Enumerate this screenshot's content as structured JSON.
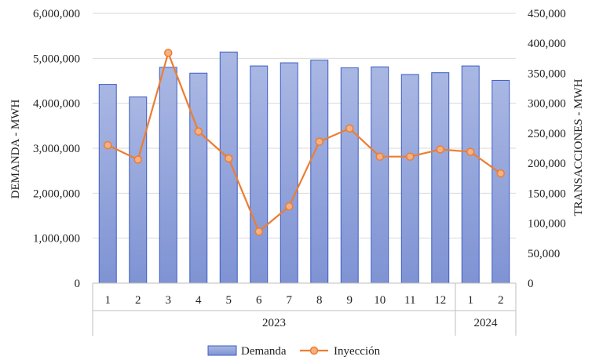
{
  "chart_data": {
    "type": "bar+line",
    "categories": [
      "1",
      "2",
      "3",
      "4",
      "5",
      "6",
      "7",
      "8",
      "9",
      "10",
      "11",
      "12",
      "1",
      "2"
    ],
    "groups": [
      {
        "label": "2023",
        "count": 12
      },
      {
        "label": "2024",
        "count": 2
      }
    ],
    "series": [
      {
        "name": "Demanda",
        "type": "bar",
        "axis": "left",
        "values": [
          4420000,
          4140000,
          4800000,
          4670000,
          5140000,
          4830000,
          4900000,
          4960000,
          4790000,
          4810000,
          4640000,
          4680000,
          4830000,
          4510000
        ]
      },
      {
        "name": "Inyección",
        "type": "line",
        "axis": "right",
        "values": [
          230000,
          206000,
          384000,
          253000,
          208000,
          86000,
          128000,
          236000,
          258000,
          211000,
          211000,
          223000,
          219000,
          183000
        ]
      }
    ],
    "ylabel": "DEMANDA - MWH",
    "y2label": "TRANSACCIONES - MWH",
    "ylim": [
      0,
      6000000
    ],
    "y2lim": [
      0,
      450000
    ],
    "yticks": [
      "0",
      "1,000,000",
      "2,000,000",
      "3,000,000",
      "4,000,000",
      "5,000,000",
      "6,000,000"
    ],
    "y2ticks": [
      "0",
      "50,000",
      "100,000",
      "150,000",
      "200,000",
      "250,000",
      "300,000",
      "350,000",
      "400,000",
      "450,000"
    ],
    "grid": true,
    "legend_position": "bottom",
    "colors": {
      "bar_fill_top": "#a9b7e3",
      "bar_fill_bottom": "#7f93d4",
      "bar_stroke": "#3c5cc4",
      "line": "#ed7d31",
      "marker_fill": "#f4b183",
      "grid": "#d9d9d9"
    }
  }
}
